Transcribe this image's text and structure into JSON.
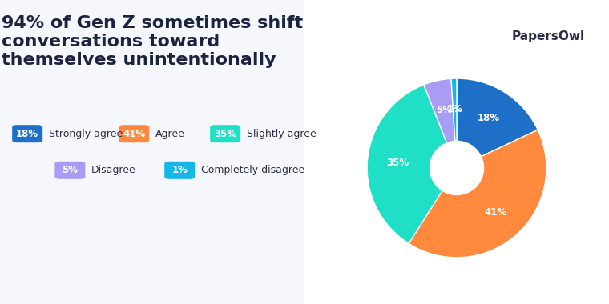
{
  "chart_data": {
    "type": "pie",
    "title": "94% of Gen Z sometimes shift conversations toward themselves unintentionally",
    "annotations": [
      "PapersOwl"
    ],
    "categories": [
      "Strongly agree",
      "Agree",
      "Slightly agree",
      "Disagree",
      "Completely disagree"
    ],
    "values": [
      18,
      41,
      35,
      5,
      1
    ],
    "value_labels": [
      "18%",
      "41%",
      "35%",
      "5%",
      "1%"
    ],
    "colors": [
      "#1e6fc7",
      "#ff8a3d",
      "#1fe0c6",
      "#a99cf5",
      "#14b8e8"
    ],
    "data_labels": true
  }
}
